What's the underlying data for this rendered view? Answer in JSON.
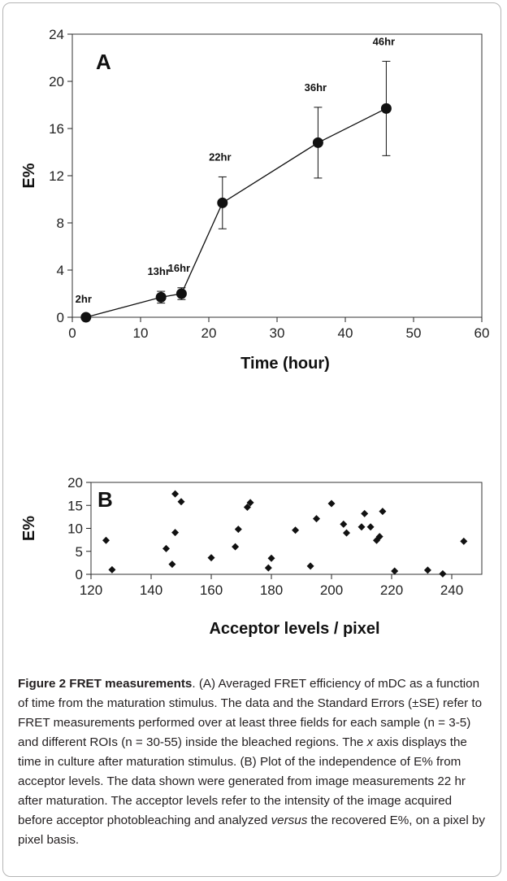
{
  "chart_data": [
    {
      "type": "line",
      "panel": "A",
      "xlabel": "Time (hour)",
      "ylabel": "E%",
      "xlim": [
        0,
        60
      ],
      "ylim": [
        0,
        24
      ],
      "xticks": [
        0,
        10,
        20,
        30,
        40,
        50,
        60
      ],
      "yticks": [
        0,
        4,
        8,
        12,
        16,
        20,
        24
      ],
      "grid": false,
      "points": [
        {
          "x": 2,
          "y": 0,
          "err": 0,
          "label": "2hr"
        },
        {
          "x": 13,
          "y": 1.7,
          "err": 0.5,
          "label": "13hr"
        },
        {
          "x": 16,
          "y": 2.0,
          "err": 0.5,
          "label": "16hr"
        },
        {
          "x": 22,
          "y": 9.7,
          "err": 2.2,
          "label": "22hr"
        },
        {
          "x": 36,
          "y": 14.8,
          "err": 3.0,
          "label": "36hr"
        },
        {
          "x": 46,
          "y": 17.7,
          "err": 4.0,
          "label": "46hr"
        }
      ]
    },
    {
      "type": "scatter",
      "panel": "B",
      "xlabel": "Acceptor levels / pixel",
      "ylabel": "E%",
      "xlim": [
        120,
        250
      ],
      "ylim": [
        0,
        20
      ],
      "xticks": [
        120,
        140,
        160,
        180,
        200,
        220,
        240
      ],
      "yticks": [
        0,
        5,
        10,
        15,
        20
      ],
      "grid": false,
      "points": [
        {
          "x": 125,
          "y": 7.4
        },
        {
          "x": 127,
          "y": 1.0
        },
        {
          "x": 145,
          "y": 5.6
        },
        {
          "x": 147,
          "y": 2.2
        },
        {
          "x": 148,
          "y": 17.5
        },
        {
          "x": 148,
          "y": 9.1
        },
        {
          "x": 150,
          "y": 15.8
        },
        {
          "x": 160,
          "y": 3.6
        },
        {
          "x": 168,
          "y": 6.0
        },
        {
          "x": 169,
          "y": 9.8
        },
        {
          "x": 172,
          "y": 14.6
        },
        {
          "x": 173,
          "y": 15.6
        },
        {
          "x": 179,
          "y": 1.4
        },
        {
          "x": 180,
          "y": 3.5
        },
        {
          "x": 188,
          "y": 9.6
        },
        {
          "x": 193,
          "y": 1.8
        },
        {
          "x": 195,
          "y": 12.1
        },
        {
          "x": 200,
          "y": 15.4
        },
        {
          "x": 204,
          "y": 10.9
        },
        {
          "x": 205,
          "y": 9.0
        },
        {
          "x": 210,
          "y": 10.3
        },
        {
          "x": 211,
          "y": 13.2
        },
        {
          "x": 213,
          "y": 10.3
        },
        {
          "x": 215,
          "y": 7.4
        },
        {
          "x": 216,
          "y": 8.2
        },
        {
          "x": 217,
          "y": 13.7
        },
        {
          "x": 221,
          "y": 0.7
        },
        {
          "x": 232,
          "y": 0.9
        },
        {
          "x": 237,
          "y": 0.1
        },
        {
          "x": 244,
          "y": 7.2
        }
      ]
    }
  ],
  "caption": {
    "title": "Figure 2 FRET measurements",
    "p1": ". (A) Averaged FRET efficiency of mDC as a function of time from the maturation stimulus. The data and the Standard Errors (±SE) refer to FRET measurements performed over at least three fields for each sample (n = 3-5) and different ROIs (n = 30-55) inside the bleached regions. The ",
    "x_word": "x",
    "p2": " axis displays the time in culture after maturation stimulus. (B) Plot of the independence of E% from acceptor levels. The data shown were generated from image measurements 22 hr after maturation. The acceptor levels refer to the intensity of the image acquired before acceptor photobleaching and analyzed ",
    "versus_word": "versus",
    "p3": " the recovered E%, on a pixel by pixel basis."
  },
  "colors": {
    "marker": "#111111",
    "frame": "#b5b5b5",
    "axis": "#222222"
  }
}
